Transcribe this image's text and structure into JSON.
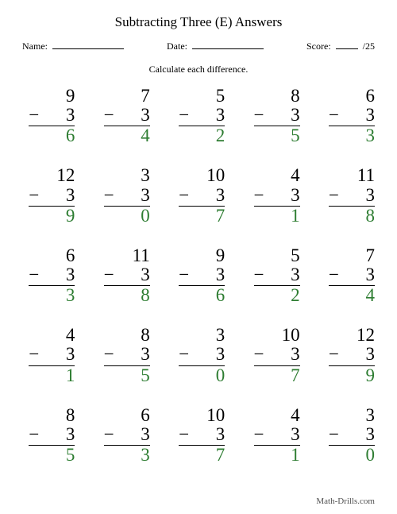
{
  "title": "Subtracting Three (E) Answers",
  "header": {
    "name_label": "Name:",
    "date_label": "Date:",
    "score_label": "Score:",
    "score_total": "/25"
  },
  "subtitle": "Calculate each difference.",
  "operator": "−",
  "subtrahend": "3",
  "styling": {
    "answer_color": "#2e7d32",
    "text_color": "#000000",
    "problem_fontsize": 23,
    "title_fontsize": 17,
    "header_fontsize": 12,
    "columns": 5,
    "rows": 5
  },
  "problems": [
    {
      "minuend": "9",
      "answer": "6"
    },
    {
      "minuend": "7",
      "answer": "4"
    },
    {
      "minuend": "5",
      "answer": "2"
    },
    {
      "minuend": "8",
      "answer": "5"
    },
    {
      "minuend": "6",
      "answer": "3"
    },
    {
      "minuend": "12",
      "answer": "9"
    },
    {
      "minuend": "3",
      "answer": "0"
    },
    {
      "minuend": "10",
      "answer": "7"
    },
    {
      "minuend": "4",
      "answer": "1"
    },
    {
      "minuend": "11",
      "answer": "8"
    },
    {
      "minuend": "6",
      "answer": "3"
    },
    {
      "minuend": "11",
      "answer": "8"
    },
    {
      "minuend": "9",
      "answer": "6"
    },
    {
      "minuend": "5",
      "answer": "2"
    },
    {
      "minuend": "7",
      "answer": "4"
    },
    {
      "minuend": "4",
      "answer": "1"
    },
    {
      "minuend": "8",
      "answer": "5"
    },
    {
      "minuend": "3",
      "answer": "0"
    },
    {
      "minuend": "10",
      "answer": "7"
    },
    {
      "minuend": "12",
      "answer": "9"
    },
    {
      "minuend": "8",
      "answer": "5"
    },
    {
      "minuend": "6",
      "answer": "3"
    },
    {
      "minuend": "10",
      "answer": "7"
    },
    {
      "minuend": "4",
      "answer": "1"
    },
    {
      "minuend": "3",
      "answer": "0"
    }
  ],
  "footer": "Math-Drills.com"
}
